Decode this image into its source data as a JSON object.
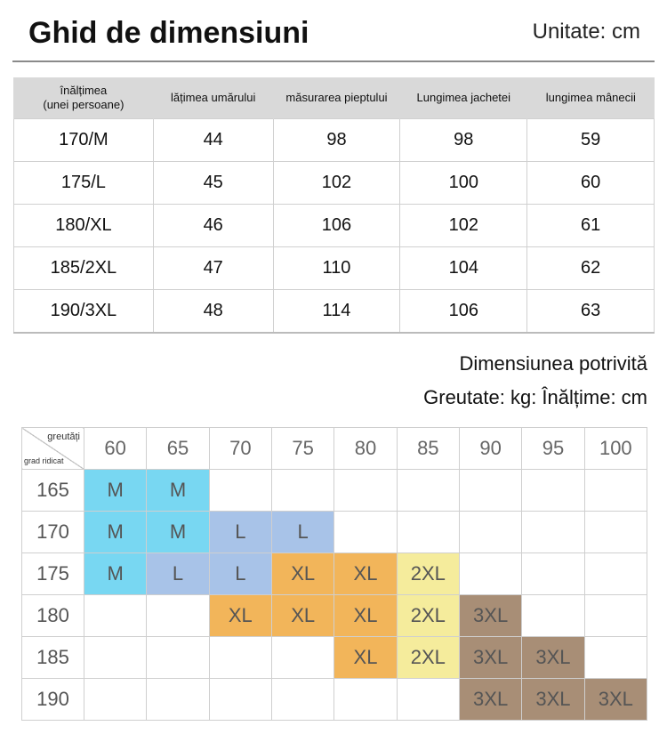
{
  "header": {
    "title": "Ghid de dimensiuni",
    "unit": "Unitate: cm"
  },
  "size_table": {
    "headers": [
      "înălțimea\n(unei persoane)",
      "lățimea umărului",
      "măsurarea pieptului",
      "Lungimea jachetei",
      "lungimea mânecii"
    ],
    "rows": [
      [
        "170/M",
        "44",
        "98",
        "98",
        "59"
      ],
      [
        "175/L",
        "45",
        "102",
        "100",
        "60"
      ],
      [
        "180/XL",
        "46",
        "106",
        "102",
        "61"
      ],
      [
        "185/2XL",
        "47",
        "110",
        "104",
        "62"
      ],
      [
        "190/3XL",
        "48",
        "114",
        "106",
        "63"
      ]
    ]
  },
  "fit": {
    "title": "Dimensiunea potrivită",
    "subtitle": "Greutate: kg: Înălțime: cm",
    "corner_weight": "greutăți",
    "corner_height": "grad ridicat",
    "weights": [
      "60",
      "65",
      "70",
      "75",
      "80",
      "85",
      "90",
      "95",
      "100"
    ],
    "rows": [
      {
        "height": "165",
        "cells": [
          "M",
          "M",
          "",
          "",
          "",
          "",
          "",
          "",
          ""
        ]
      },
      {
        "height": "170",
        "cells": [
          "M",
          "M",
          "L",
          "L",
          "",
          "",
          "",
          "",
          ""
        ]
      },
      {
        "height": "175",
        "cells": [
          "M",
          "L",
          "L",
          "XL",
          "XL",
          "2XL",
          "",
          "",
          ""
        ]
      },
      {
        "height": "180",
        "cells": [
          "",
          "",
          "XL",
          "XL",
          "XL",
          "2XL",
          "3XL",
          "",
          ""
        ]
      },
      {
        "height": "185",
        "cells": [
          "",
          "",
          "",
          "",
          "XL",
          "2XL",
          "3XL",
          "3XL",
          ""
        ]
      },
      {
        "height": "190",
        "cells": [
          "",
          "",
          "",
          "",
          "",
          "",
          "3XL",
          "3XL",
          "3XL"
        ]
      }
    ],
    "colors": {
      "M": "#78d7f2",
      "L": "#a8c3e8",
      "XL": "#f2b55a",
      "2XL": "#f5ec9c",
      "3XL": "#a88e76"
    }
  }
}
